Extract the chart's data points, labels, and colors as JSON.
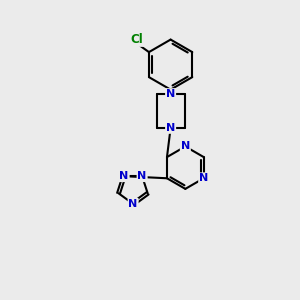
{
  "background_color": "#ebebeb",
  "bond_color": "#000000",
  "N_color": "#0000cc",
  "Cl_color": "#008000",
  "bond_width": 1.5,
  "font_size": 8,
  "fig_width": 3.0,
  "fig_height": 3.0,
  "dpi": 100,
  "xlim": [
    0,
    10
  ],
  "ylim": [
    0,
    10
  ]
}
